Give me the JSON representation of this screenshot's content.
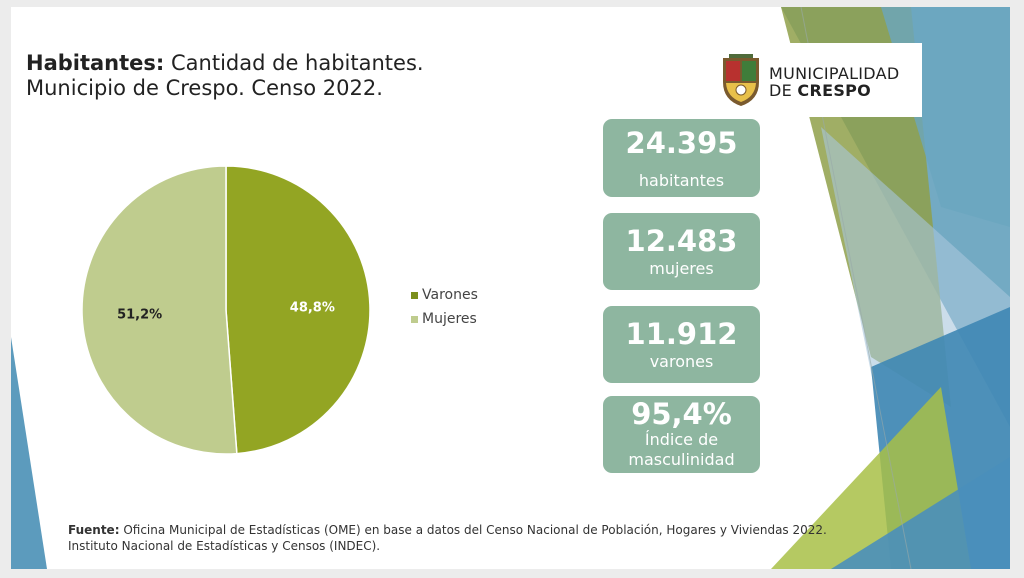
{
  "title": {
    "bold": "Habitantes:",
    "line1_rest": " Cantidad de habitantes.",
    "line2": "Municipio de Crespo. Censo 2022."
  },
  "logo": {
    "line1": "MUNICIPALIDAD",
    "line2_prefix": "DE ",
    "line2_bold": "CRESPO"
  },
  "chart_data": {
    "type": "pie",
    "categories": [
      "Varones",
      "Mujeres"
    ],
    "values": [
      48.8,
      51.2
    ],
    "labels": [
      "48,8%",
      "51,2%"
    ],
    "colors": [
      "#93a523",
      "#bfcc8e"
    ],
    "legend": "right"
  },
  "stats": [
    {
      "value": "24.395",
      "label": "habitantes"
    },
    {
      "value": "12.483",
      "label": "mujeres"
    },
    {
      "value": "11.912",
      "label": "varones"
    },
    {
      "value": "95,4%",
      "label_line1": "Índice de",
      "label_line2": "masculinidad"
    }
  ],
  "footer": {
    "bold": "Fuente:",
    "line1_rest": " Oficina Municipal de Estadísticas (OME) en base a datos del Censo Nacional de Población, Hogares y Viviendas 2022.",
    "line2": "Instituto Nacional de Estadísticas y Censos (INDEC)."
  }
}
